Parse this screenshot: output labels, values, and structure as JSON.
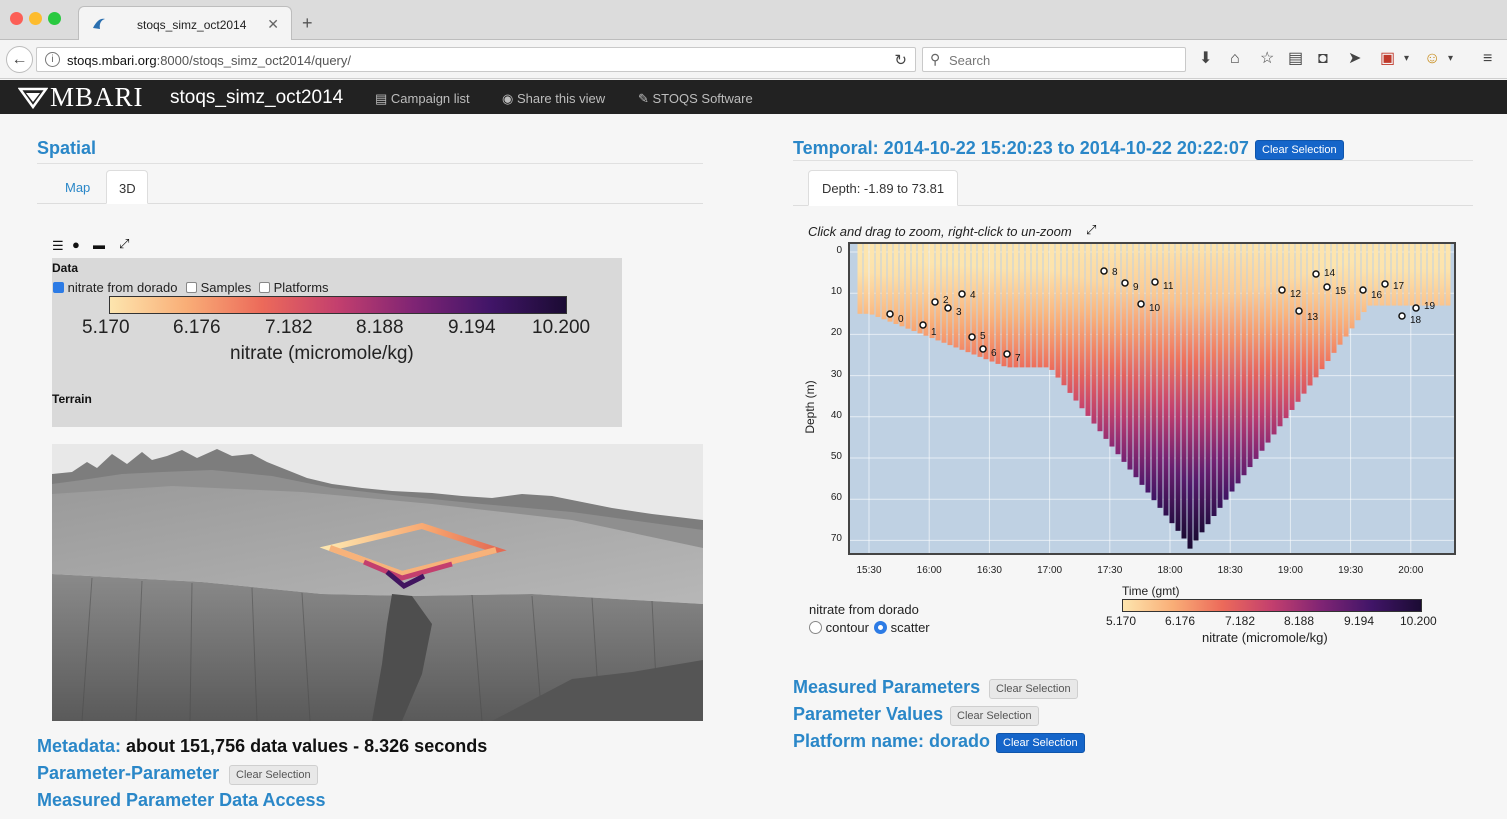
{
  "browser": {
    "tab_title": "stoqs_simz_oct2014",
    "url_host": "stoqs.mbari.org",
    "url_rest": ":8000/stoqs_simz_oct2014/query/",
    "search_placeholder": "Search"
  },
  "app": {
    "logo": "MBARI",
    "campaign": "stoqs_simz_oct2014",
    "nav": [
      "Campaign list",
      "Share this view",
      "STOQS Software"
    ]
  },
  "spatial": {
    "heading": "Spatial",
    "tabs": [
      "Map",
      "3D"
    ],
    "active_tab": "3D",
    "data_label": "Data",
    "layers": [
      {
        "label": "nitrate from dorado",
        "checked": true
      },
      {
        "label": "Samples",
        "checked": false
      },
      {
        "label": "Platforms",
        "checked": false
      }
    ],
    "colorbar_ticks": [
      "5.170",
      "6.176",
      "7.182",
      "8.188",
      "9.194",
      "10.200"
    ],
    "colorbar_label": "nitrate (micromole/kg)",
    "terrain_label": "Terrain"
  },
  "lower_left": {
    "metadata_heading": "Metadata:",
    "metadata_text": "about 151,756 data values - 8.326 seconds",
    "param_param": "Parameter-Parameter",
    "param_param_clear": "Clear Selection",
    "data_access": "Measured Parameter Data Access"
  },
  "temporal": {
    "heading": "Temporal: 2014-10-22 15:20:23 to 2014-10-22 20:22:07",
    "clear": "Clear Selection",
    "depth_tab": "Depth: -1.89 to 73.81",
    "hint": "Click and drag to zoom, right-click to un-zoom",
    "ylabel": "Depth (m)",
    "xlabel": "Time (gmt)",
    "y_ticks": [
      "0",
      "10",
      "20",
      "30",
      "40",
      "50",
      "60",
      "70"
    ],
    "x_ticks": [
      "15:30",
      "16:00",
      "16:30",
      "17:00",
      "17:30",
      "18:00",
      "18:30",
      "19:00",
      "19:30",
      "20:00"
    ],
    "markers": [
      "0",
      "1",
      "2",
      "3",
      "4",
      "5",
      "6",
      "7",
      "8",
      "9",
      "10",
      "11",
      "12",
      "13",
      "14",
      "15",
      "16",
      "17",
      "18",
      "19"
    ],
    "plot_mode_label": "nitrate from dorado",
    "mode_contour": "contour",
    "mode_scatter": "scatter",
    "mode_selected": "scatter",
    "colorbar_ticks": [
      "5.170",
      "6.176",
      "7.182",
      "8.188",
      "9.194",
      "10.200"
    ],
    "colorbar_label": "nitrate (micromole/kg)"
  },
  "right_lower": {
    "measured": "Measured Parameters",
    "measured_clear": "Clear Selection",
    "values": "Parameter Values",
    "values_clear": "Clear Selection",
    "platform": "Platform name: dorado",
    "platform_clear": "Clear Selection"
  },
  "colors": {
    "accent": "#2a87c8",
    "header_bg": "#222222",
    "clear_blue": "#1565c9",
    "cmap_low": "#fde5ae",
    "cmap_high": "#1b0b33"
  }
}
